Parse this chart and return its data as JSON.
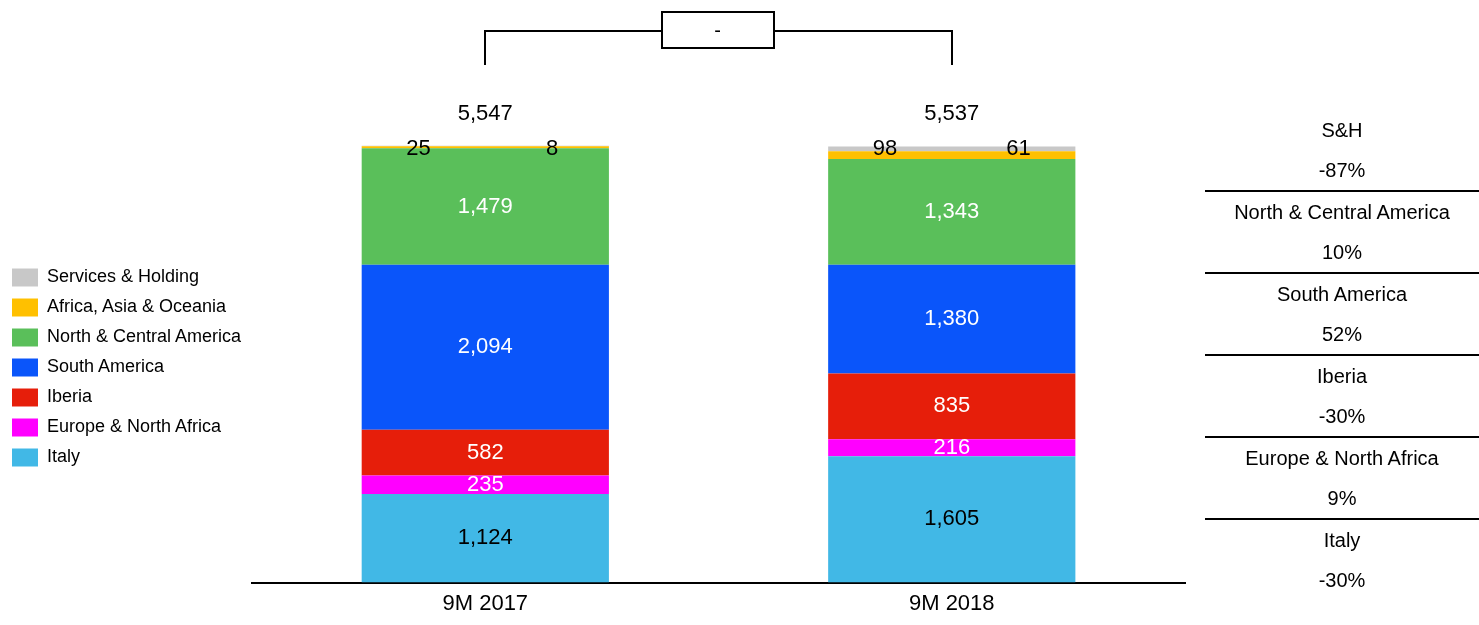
{
  "chart_data": {
    "type": "bar",
    "stacked": true,
    "categories": [
      "9M 2017",
      "9M 2018"
    ],
    "series": [
      {
        "name": "Italy",
        "color": "#41b8e6",
        "values": [
          1124,
          1605
        ],
        "value_labels": [
          "1,124",
          "1,605"
        ]
      },
      {
        "name": "Europe & North Africa",
        "color": "#ff00ff",
        "values": [
          235,
          216
        ],
        "value_labels": [
          "235",
          "216"
        ]
      },
      {
        "name": "Iberia",
        "color": "#e61e0a",
        "values": [
          582,
          835
        ],
        "value_labels": [
          "582",
          "835"
        ]
      },
      {
        "name": "South America",
        "color": "#0a55fa",
        "values": [
          2094,
          1380
        ],
        "value_labels": [
          "2,094",
          "1,380"
        ]
      },
      {
        "name": "North & Central America",
        "color": "#5abf5a",
        "values": [
          1479,
          1343
        ],
        "value_labels": [
          "1,479",
          "1,343"
        ]
      },
      {
        "name": "Africa, Asia & Oceania",
        "color": "#ffc000",
        "values": [
          25,
          98
        ],
        "value_labels": [
          "25",
          "98"
        ]
      },
      {
        "name": "Services & Holding",
        "color": "#c8c8c8",
        "values": [
          8,
          61
        ],
        "value_labels": [
          "8",
          "61"
        ]
      }
    ],
    "totals": [
      "5,547",
      "5,537"
    ],
    "tick_labels": "x",
    "legend": "left",
    "annotations": [
      "-",
      "S&H",
      "-87%",
      "North & Central America",
      "10%",
      "South America",
      "52%",
      "Iberia",
      "-30%",
      "Europe & North Africa",
      "9%",
      "Italy",
      "-30%"
    ]
  }
}
